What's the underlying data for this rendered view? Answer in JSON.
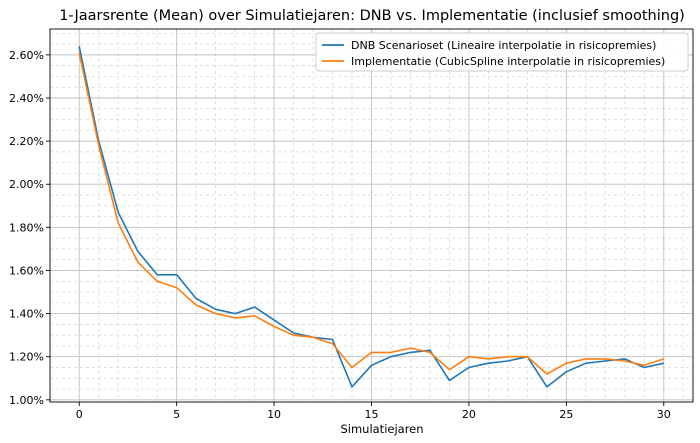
{
  "chart_data": {
    "type": "line",
    "title": "1-Jaarsrente (Mean) over Simulatiejaren: DNB vs. Implementatie (inclusief smoothing)",
    "xlabel": "Simulatiejaren",
    "ylabel": "",
    "xlim": [
      -1.5,
      31.5
    ],
    "ylim": [
      0.99,
      2.72
    ],
    "xticks": [
      0,
      5,
      10,
      15,
      20,
      25,
      30
    ],
    "yticks": [
      1.0,
      1.2,
      1.4,
      1.6,
      1.8,
      2.0,
      2.2,
      2.4,
      2.6
    ],
    "ytick_labels": [
      "1.00%",
      "1.20%",
      "1.40%",
      "1.60%",
      "1.80%",
      "2.00%",
      "2.20%",
      "2.40%",
      "2.60%"
    ],
    "grid": true,
    "legend_position": "top-right",
    "x": [
      0,
      1,
      2,
      3,
      4,
      5,
      6,
      7,
      8,
      9,
      10,
      11,
      12,
      13,
      14,
      15,
      16,
      17,
      18,
      19,
      20,
      21,
      22,
      23,
      24,
      25,
      26,
      27,
      28,
      29,
      30
    ],
    "series": [
      {
        "name": "DNB Scenarioset (Lineaire interpolatie in risicopremies)",
        "color": "#1f77b4",
        "values": [
          2.64,
          2.2,
          1.87,
          1.69,
          1.58,
          1.58,
          1.47,
          1.42,
          1.4,
          1.43,
          1.37,
          1.31,
          1.29,
          1.28,
          1.06,
          1.16,
          1.2,
          1.22,
          1.23,
          1.09,
          1.15,
          1.17,
          1.18,
          1.2,
          1.06,
          1.13,
          1.17,
          1.18,
          1.19,
          1.15,
          1.17
        ]
      },
      {
        "name": "Implementatie (CubicSpline interpolatie in risicopremies)",
        "color": "#ff7f0e",
        "values": [
          2.61,
          2.18,
          1.82,
          1.64,
          1.55,
          1.52,
          1.44,
          1.4,
          1.38,
          1.39,
          1.34,
          1.3,
          1.29,
          1.26,
          1.15,
          1.22,
          1.22,
          1.24,
          1.22,
          1.14,
          1.2,
          1.19,
          1.2,
          1.2,
          1.12,
          1.17,
          1.19,
          1.19,
          1.18,
          1.16,
          1.19
        ]
      }
    ]
  }
}
